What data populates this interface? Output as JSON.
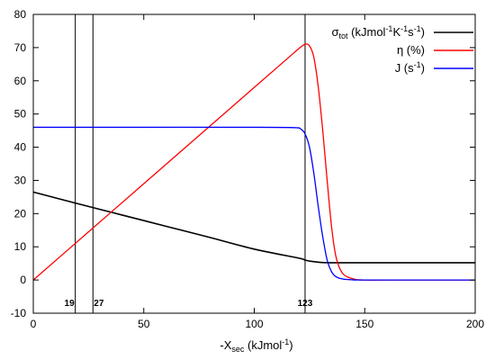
{
  "chart_data": {
    "type": "line",
    "title": "",
    "xlabel": "-X",
    "xlabel_sub": "sec",
    "xlabel_unit": "(kJmol",
    "xlabel_unit_sup": "-1",
    "xlabel_unit_close": ")",
    "xlim": [
      0,
      200
    ],
    "ylim": [
      -10,
      80
    ],
    "xticks": [
      0,
      50,
      100,
      150,
      200
    ],
    "yticks": [
      -10,
      0,
      10,
      20,
      30,
      40,
      50,
      60,
      70,
      80
    ],
    "grid": false,
    "legend_position": "top-right",
    "vertical_lines": [
      {
        "x": 19,
        "label": "19"
      },
      {
        "x": 27,
        "label": "27"
      },
      {
        "x": 123,
        "label": "123"
      }
    ],
    "series": [
      {
        "key": "sigma",
        "color": "#000000",
        "legend": {
          "symbol": "σ",
          "sub": "tot",
          "rest": " (kJmol",
          "sup1": "-1",
          "mid": "K",
          "sup2": "-1",
          "tail": "s",
          "sup3": "-1",
          "close": ")"
        },
        "x": [
          0,
          20,
          40,
          60,
          80,
          100,
          120,
          123,
          126,
          130,
          135,
          140,
          150,
          175,
          200
        ],
        "y": [
          26.5,
          23.0,
          19.6,
          16.2,
          12.8,
          9.3,
          6.6,
          6.0,
          5.6,
          5.3,
          5.2,
          5.2,
          5.2,
          5.2,
          5.2
        ]
      },
      {
        "key": "eta",
        "color": "#ff0000",
        "legend": {
          "text": "η (%)"
        },
        "x": [
          0,
          25,
          50,
          75,
          100,
          115,
          120,
          123,
          125,
          127,
          129,
          131,
          133,
          135,
          137,
          140,
          145,
          150,
          160,
          200
        ],
        "y": [
          0,
          14.5,
          29,
          43.5,
          58,
          66.7,
          69.6,
          71.0,
          70.5,
          67.0,
          58.0,
          45.0,
          30.0,
          16.0,
          7.0,
          2.0,
          0.3,
          0,
          0,
          0
        ]
      },
      {
        "key": "J",
        "color": "#0000ff",
        "legend": {
          "text": "J (s",
          "sup": "-1",
          "close": ")"
        },
        "x": [
          0,
          50,
          100,
          118,
          121,
          123,
          125,
          127,
          129,
          131,
          133,
          135,
          137,
          140,
          145,
          150,
          200
        ],
        "y": [
          46,
          46,
          46,
          45.9,
          45.5,
          44.0,
          40.0,
          32.0,
          22.0,
          13.0,
          6.0,
          2.5,
          1.0,
          0.3,
          0.05,
          0,
          0
        ]
      }
    ]
  }
}
